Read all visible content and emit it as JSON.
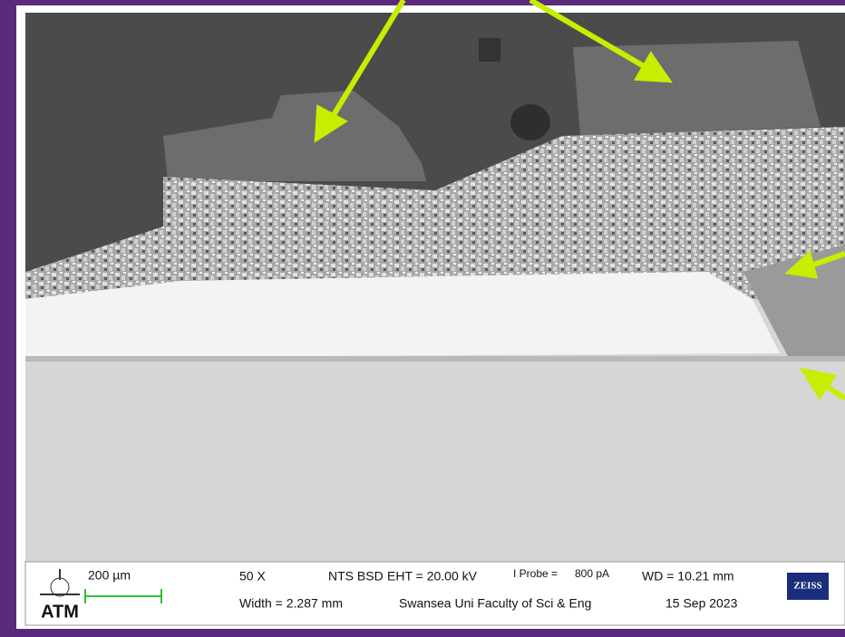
{
  "scale_bar": {
    "label": "200 µm"
  },
  "logos": {
    "left": "ATM",
    "right": "ZEISS"
  },
  "info": {
    "magnification": "50 X",
    "detector": "NTS BSD",
    "eht": "EHT = 20.00 kV",
    "probe_label": "I Probe =",
    "probe_value": "800 pA",
    "wd": "WD = 10.21 mm",
    "width": "Width = 2.287 mm",
    "institution": "Swansea Uni Faculty of Sci & Eng",
    "date": "15 Sep 2023"
  }
}
